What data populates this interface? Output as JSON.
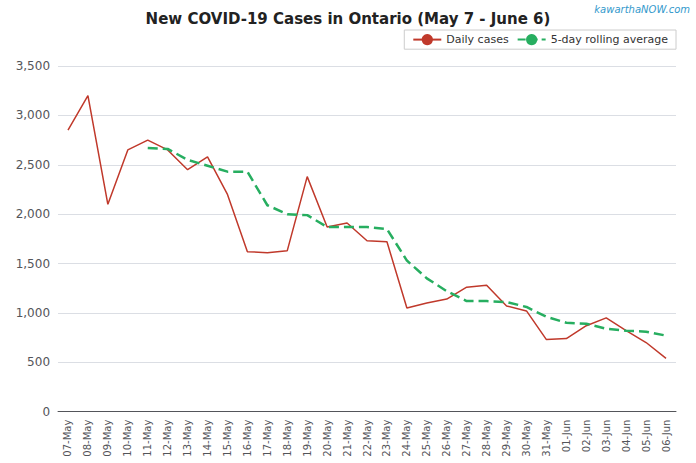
{
  "chart_data": {
    "type": "line",
    "title": "New COVID-19 Cases in Ontario (May 7 - June 6)",
    "annotations": [
      "kawarthaNOW.com"
    ],
    "categories": [
      "07-May",
      "08-May",
      "09-May",
      "10-May",
      "11-May",
      "12-May",
      "13-May",
      "14-May",
      "15-May",
      "16-May",
      "17-May",
      "18-May",
      "19-May",
      "20-May",
      "21-May",
      "22-May",
      "23-May",
      "24-May",
      "25-May",
      "26-May",
      "27-May",
      "28-May",
      "29-May",
      "30-May",
      "31-May",
      "01-Jun",
      "02-Jun",
      "03-Jun",
      "04-Jun",
      "05-Jun",
      "06-Jun"
    ],
    "series": [
      {
        "name": "Daily cases",
        "color": "#c0392b",
        "line_style": "solid",
        "values": [
          2850,
          3200,
          2100,
          2650,
          2750,
          2650,
          2450,
          2580,
          2200,
          1620,
          1610,
          1630,
          2380,
          1870,
          1910,
          1730,
          1720,
          1050,
          1100,
          1140,
          1260,
          1280,
          1070,
          1020,
          730,
          740,
          870,
          950,
          820,
          700,
          540
        ]
      },
      {
        "name": "5-day rolling average",
        "color": "#27ae60",
        "line_style": "dashed",
        "values": [
          null,
          null,
          null,
          null,
          2670,
          2660,
          2550,
          2490,
          2430,
          2430,
          2090,
          2000,
          1990,
          1870,
          1870,
          1870,
          1850,
          1530,
          1350,
          1220,
          1120,
          1120,
          1110,
          1060,
          960,
          900,
          890,
          840,
          820,
          810,
          770
        ]
      }
    ],
    "ylim": [
      0,
      3500
    ],
    "yticks": [
      0,
      500,
      {
        "value": 1000,
        "label": "1,000"
      },
      {
        "value": 1500,
        "label": "1,500"
      },
      {
        "value": 2000,
        "label": "2,000"
      },
      {
        "value": 2500,
        "label": "2,500"
      },
      {
        "value": 3000,
        "label": "3,000"
      },
      {
        "value": 3500,
        "label": "3,500"
      }
    ],
    "grid": true,
    "legend": "upper right"
  }
}
